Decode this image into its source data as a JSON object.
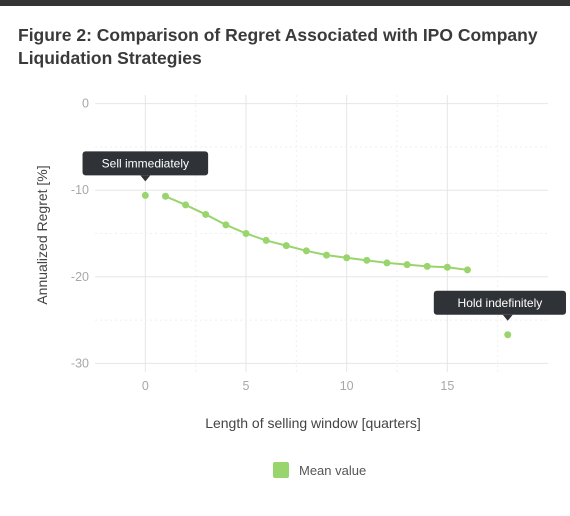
{
  "title": "Figure 2:  Comparison of Regret Associated with IPO Company Liquidation Strategies",
  "chart_data": {
    "type": "line",
    "xlabel": "Length of selling window [quarters]",
    "ylabel": "Annualized Regret [%]",
    "xlim": [
      -2.5,
      20
    ],
    "ylim": [
      -31,
      1
    ],
    "xticks": [
      0,
      5,
      10,
      15
    ],
    "yticks": [
      0,
      -10,
      -20,
      -30
    ],
    "xtick_labels": [
      "0",
      "5",
      "10",
      "15"
    ],
    "ytick_labels": [
      "0",
      "-10",
      "-20",
      "-30"
    ],
    "grid": true,
    "series": [
      {
        "name": "Mean value",
        "color": "#99d56c",
        "x": [
          1,
          2,
          3,
          4,
          5,
          6,
          7,
          8,
          9,
          10,
          11,
          12,
          13,
          14,
          15,
          16
        ],
        "y": [
          -10.7,
          -11.7,
          -12.8,
          -14.0,
          -15.0,
          -15.8,
          -16.4,
          -17.0,
          -17.5,
          -17.8,
          -18.1,
          -18.4,
          -18.6,
          -18.8,
          -18.9,
          -19.2
        ]
      }
    ],
    "points": [
      {
        "x": 0,
        "y": -10.6,
        "label": "Sell immediately"
      },
      {
        "x": 18,
        "y": -26.7,
        "label": "Hold indefinitely"
      }
    ],
    "legend": {
      "position": "bottom",
      "label": "Mean value"
    }
  }
}
